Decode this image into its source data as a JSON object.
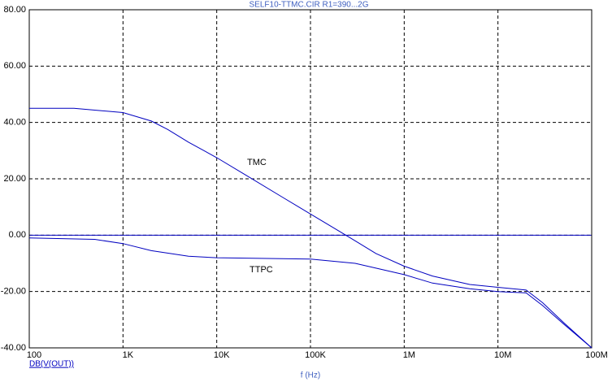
{
  "chart_data": {
    "type": "line",
    "title": "SELF10-TTMC.CIR R1=390...2G",
    "x_label": "f (Hz)",
    "y_label": "DB(V(OUT))",
    "log_x": true,
    "grid": true,
    "color": "#0000c0",
    "xlim": [
      100,
      100000000
    ],
    "xticks": [
      {
        "value": 100,
        "label": "100"
      },
      {
        "value": 1000,
        "label": "1K"
      },
      {
        "value": 10000,
        "label": "10K"
      },
      {
        "value": 100000,
        "label": "100K"
      },
      {
        "value": 1000000,
        "label": "1M"
      },
      {
        "value": 10000000,
        "label": "10M"
      },
      {
        "value": 100000000,
        "label": "100M"
      }
    ],
    "ylim": [
      -40,
      80
    ],
    "yticks": [
      {
        "value": -40,
        "label": "-40.00"
      },
      {
        "value": -20,
        "label": "-20.00"
      },
      {
        "value": 0,
        "label": "0.00"
      },
      {
        "value": 20,
        "label": "20.00"
      },
      {
        "value": 40,
        "label": "40.00"
      },
      {
        "value": 60,
        "label": "60.00"
      },
      {
        "value": 80,
        "label": "80.00"
      }
    ],
    "series": [
      {
        "name": "TMC",
        "color": "#0000c0",
        "x": [
          100,
          300,
          1000,
          2000,
          3000,
          5000,
          10000,
          20000,
          50000,
          100000,
          200000,
          300000,
          500000,
          1000000,
          2000000,
          5000000,
          10000000,
          20000000,
          30000000,
          50000000,
          100000000
        ],
        "values": [
          45,
          45,
          43.5,
          40.5,
          37.5,
          33,
          27.5,
          21.5,
          13.5,
          7.5,
          1.5,
          -2,
          -6.5,
          -11,
          -14.5,
          -17.5,
          -18.5,
          -19.5,
          -24,
          -31,
          -40
        ]
      },
      {
        "name": "TTPC",
        "color": "#0000c0",
        "x": [
          100,
          500,
          1000,
          2000,
          5000,
          10000,
          100000,
          300000,
          1000000,
          2000000,
          5000000,
          10000000,
          20000000,
          30000000,
          50000000,
          100000000
        ],
        "values": [
          -1,
          -1.5,
          -3,
          -5.5,
          -7.5,
          -8,
          -8.5,
          -10,
          -14,
          -17,
          -19,
          -20,
          -20.5,
          -25,
          -31.5,
          -40
        ]
      }
    ]
  }
}
